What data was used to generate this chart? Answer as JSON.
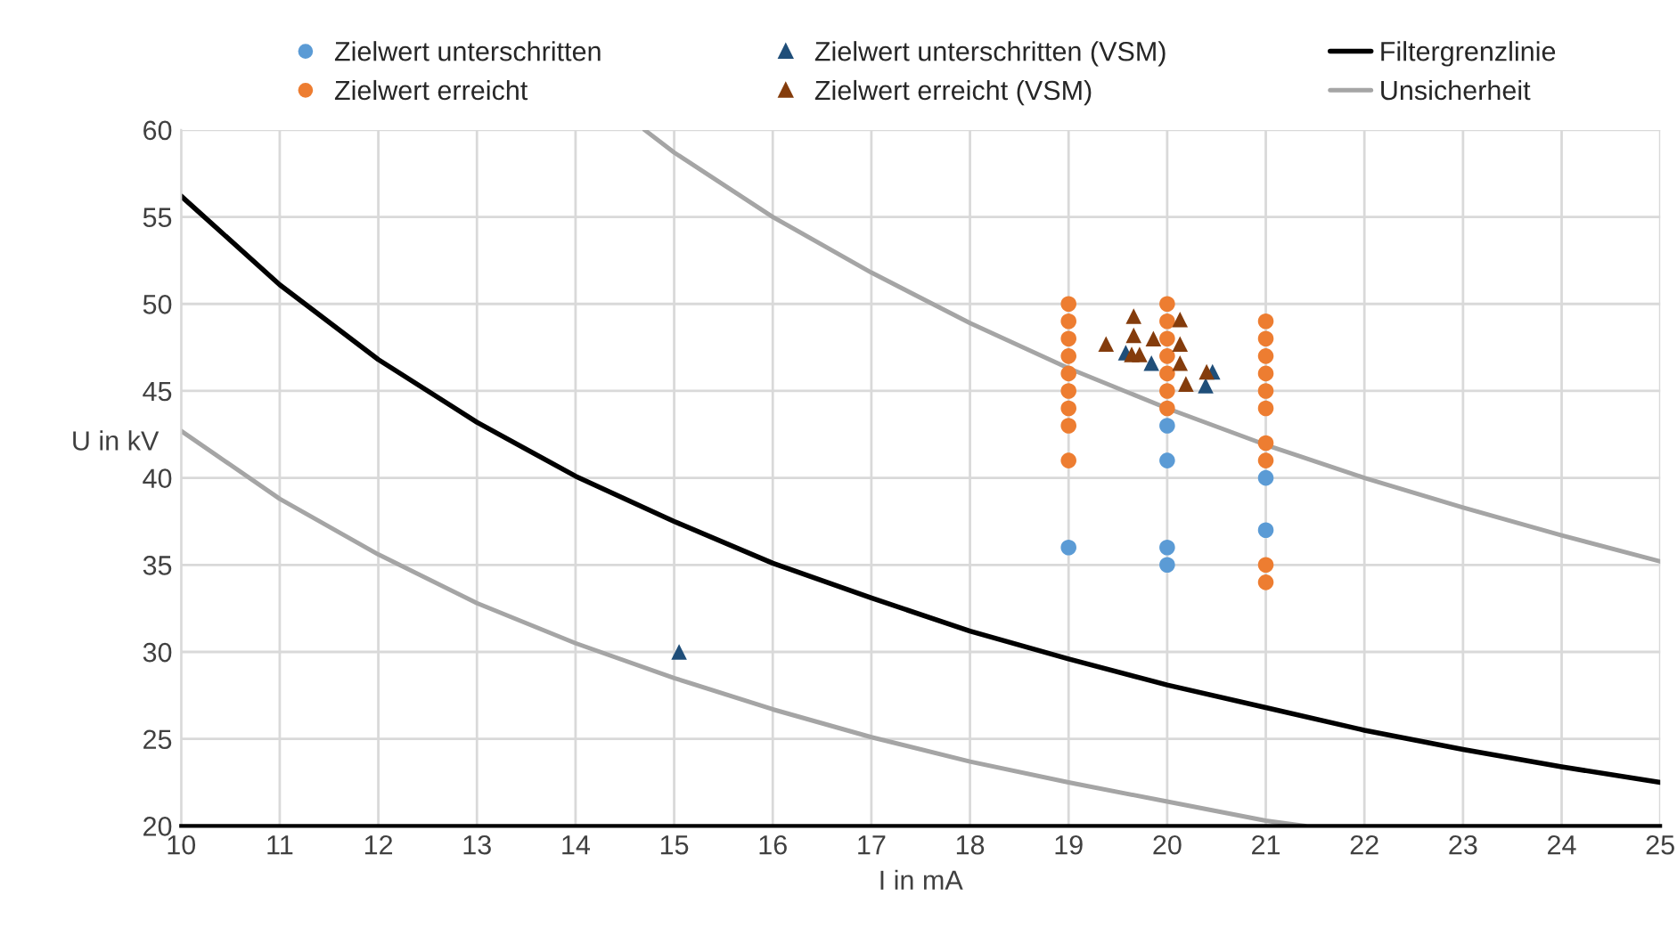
{
  "chart_data": {
    "type": "scatter",
    "xlabel": "I in mA",
    "ylabel": "U in kV",
    "xlim": [
      10,
      25
    ],
    "xticks": [
      10,
      11,
      12,
      13,
      14,
      15,
      16,
      17,
      18,
      19,
      20,
      21,
      22,
      23,
      24,
      25
    ],
    "ylim": [
      20,
      60
    ],
    "yticks": [
      20,
      25,
      30,
      35,
      40,
      45,
      50,
      55,
      60
    ],
    "grid": true,
    "legend": "top",
    "series": [
      {
        "name": "Zielwert unterschritten",
        "color": "#5b9bd5",
        "marker": "circle",
        "x": [
          19,
          20,
          20,
          20,
          20,
          21,
          21
        ],
        "values": [
          36,
          43,
          41,
          36,
          35,
          40,
          37
        ]
      },
      {
        "name": "Zielwert erreicht",
        "color": "#ed7d31",
        "marker": "circle",
        "x": [
          19,
          19,
          19,
          19,
          19,
          19,
          19,
          19,
          19,
          20,
          20,
          20,
          20,
          20,
          20,
          20,
          21,
          21,
          21,
          21,
          21,
          21,
          21,
          21,
          21,
          21
        ],
        "values": [
          50,
          49,
          48,
          47,
          46,
          45,
          44,
          43,
          41,
          50,
          49,
          48,
          47,
          46,
          45,
          44,
          49,
          48,
          47,
          46,
          45,
          44,
          42,
          41,
          35,
          34
        ]
      },
      {
        "name": "Zielwert unterschritten (VSM)",
        "color": "#1f4e79",
        "marker": "triangle",
        "x": [
          15.05,
          19.58,
          19.84,
          20.46,
          20.39
        ],
        "values": [
          30,
          47.2,
          46.6,
          46.1,
          45.3
        ]
      },
      {
        "name": "Zielwert erreicht (VSM)",
        "color": "#843c0c",
        "marker": "triangle",
        "x": [
          19.66,
          20.13,
          19.66,
          19.38,
          19.86,
          20.13,
          19.64,
          19.72,
          20.13,
          20.19,
          20.4
        ],
        "values": [
          49.3,
          49.1,
          48.2,
          47.7,
          48.0,
          47.7,
          47.1,
          47.1,
          46.6,
          45.4,
          46.1
        ]
      },
      {
        "name": "Filtergrenzlinie",
        "type": "line",
        "color": "#000000",
        "marker": "none",
        "x": [
          10,
          11,
          12,
          13,
          14,
          15,
          16,
          17,
          18,
          19,
          20,
          21,
          22,
          23,
          24,
          25
        ],
        "values": [
          56.2,
          51.1,
          46.8,
          43.2,
          40.1,
          37.5,
          35.1,
          33.1,
          31.2,
          29.6,
          28.1,
          26.8,
          25.5,
          24.4,
          23.4,
          22.5
        ]
      },
      {
        "name": "Unsicherheit",
        "type": "line",
        "color": "#a5a5a5",
        "marker": "none",
        "x": [
          14.7,
          15,
          16,
          17,
          18,
          19,
          20,
          21,
          22,
          23,
          24,
          25
        ],
        "values": [
          60,
          58.7,
          55,
          51.8,
          48.9,
          46.3,
          44,
          41.9,
          40,
          38.3,
          36.7,
          35.2
        ]
      },
      {
        "type": "line",
        "color": "#a5a5a5",
        "marker": "none",
        "x": [
          10,
          11,
          12,
          13,
          14,
          15,
          16,
          17,
          18,
          19,
          20,
          21,
          21.4
        ],
        "values": [
          42.7,
          38.8,
          35.6,
          32.8,
          30.5,
          28.5,
          26.7,
          25.1,
          23.7,
          22.5,
          21.4,
          20.3,
          20
        ]
      }
    ]
  }
}
